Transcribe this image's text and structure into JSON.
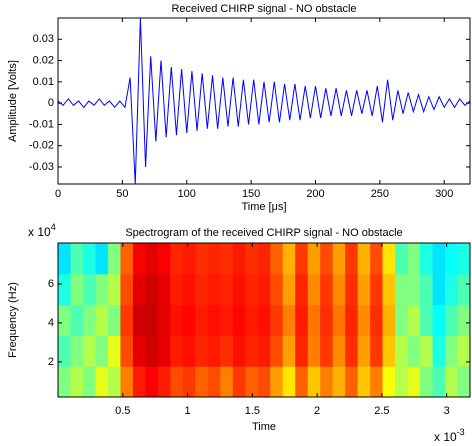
{
  "chart_data": [
    {
      "type": "line",
      "title": "Received CHIRP signal - NO obstacle",
      "xlabel": "Time [μs]",
      "ylabel": "Amplitude [Volts]",
      "color": "#0000ff",
      "x": [
        0,
        4,
        8,
        12,
        16,
        20,
        24,
        28,
        32,
        36,
        40,
        44,
        48,
        52,
        56,
        60,
        64,
        68,
        72,
        76,
        80,
        84,
        88,
        92,
        96,
        100,
        104,
        108,
        112,
        116,
        120,
        124,
        128,
        132,
        136,
        140,
        144,
        148,
        152,
        156,
        160,
        164,
        168,
        172,
        176,
        180,
        184,
        188,
        192,
        196,
        200,
        204,
        208,
        212,
        216,
        220,
        224,
        228,
        232,
        236,
        240,
        244,
        248,
        252,
        256,
        260,
        264,
        268,
        272,
        276,
        280,
        284,
        288,
        292,
        296,
        300,
        304,
        308,
        312,
        316,
        320
      ],
      "values": [
        0.001,
        -0.001,
        0.002,
        -0.001,
        0.001,
        -0.002,
        0.001,
        -0.001,
        0.002,
        -0.001,
        0.001,
        -0.002,
        0.001,
        -0.002,
        0.012,
        -0.038,
        0.04,
        -0.03,
        0.022,
        -0.018,
        0.02,
        -0.016,
        0.017,
        -0.015,
        0.016,
        -0.014,
        0.015,
        -0.013,
        0.014,
        -0.012,
        0.013,
        -0.012,
        0.012,
        -0.011,
        0.012,
        -0.011,
        0.011,
        -0.01,
        0.011,
        -0.01,
        0.01,
        -0.009,
        0.01,
        -0.009,
        0.009,
        -0.008,
        0.009,
        -0.008,
        0.008,
        -0.007,
        0.008,
        -0.007,
        0.007,
        -0.006,
        0.007,
        -0.006,
        0.006,
        -0.006,
        0.006,
        -0.005,
        0.006,
        -0.006,
        0.008,
        -0.009,
        0.011,
        -0.008,
        0.006,
        -0.005,
        0.005,
        -0.004,
        0.004,
        -0.004,
        0.003,
        -0.003,
        0.003,
        -0.002,
        0.002,
        -0.002,
        0.002,
        -0.001,
        0.001
      ],
      "xlim": [
        0,
        320
      ],
      "xticks": [
        0,
        50,
        100,
        150,
        200,
        250,
        300
      ],
      "ylim": [
        -0.038,
        0.04
      ],
      "yticks": [
        -0.03,
        -0.02,
        -0.01,
        0,
        0.01,
        0.02,
        0.03
      ]
    },
    {
      "type": "heatmap",
      "title": "Spectrogram of the received CHIRP signal - NO obstacle",
      "xlabel": "Time",
      "ylabel": "Frequency (Hz)",
      "x_multiplier": "x 10",
      "x_exponent": "-3",
      "y_multiplier": "x 10",
      "y_exponent": "4",
      "colormap": "jet",
      "zlim": [
        0,
        1
      ],
      "xlim": [
        0,
        3.18
      ],
      "xticks": [
        0.5,
        1,
        1.5,
        2,
        2.5,
        3
      ],
      "ylim": [
        0.2,
        8.1
      ],
      "yticks": [
        2,
        4,
        6
      ],
      "values": [
        [
          0.5,
          0.55,
          0.5,
          0.6,
          0.55,
          0.75,
          0.85,
          0.88,
          0.85,
          0.8,
          0.82,
          0.78,
          0.8,
          0.75,
          0.82,
          0.78,
          0.8,
          0.72,
          0.65,
          0.78,
          0.68,
          0.75,
          0.7,
          0.78,
          0.68,
          0.75,
          0.62,
          0.55,
          0.6,
          0.5,
          0.45,
          0.55,
          0.5
        ],
        [
          0.45,
          0.5,
          0.55,
          0.5,
          0.6,
          0.8,
          0.9,
          0.92,
          0.9,
          0.85,
          0.86,
          0.84,
          0.85,
          0.83,
          0.86,
          0.84,
          0.85,
          0.8,
          0.72,
          0.84,
          0.75,
          0.82,
          0.74,
          0.83,
          0.72,
          0.82,
          0.68,
          0.55,
          0.5,
          0.55,
          0.4,
          0.5,
          0.55
        ],
        [
          0.5,
          0.45,
          0.5,
          0.55,
          0.5,
          0.82,
          0.92,
          0.93,
          0.9,
          0.86,
          0.87,
          0.85,
          0.86,
          0.85,
          0.87,
          0.85,
          0.86,
          0.82,
          0.75,
          0.85,
          0.76,
          0.83,
          0.76,
          0.84,
          0.74,
          0.83,
          0.7,
          0.5,
          0.55,
          0.45,
          0.38,
          0.45,
          0.5
        ],
        [
          0.4,
          0.5,
          0.45,
          0.5,
          0.55,
          0.8,
          0.9,
          0.92,
          0.9,
          0.85,
          0.86,
          0.84,
          0.85,
          0.84,
          0.86,
          0.84,
          0.85,
          0.8,
          0.72,
          0.84,
          0.74,
          0.82,
          0.74,
          0.83,
          0.72,
          0.82,
          0.68,
          0.5,
          0.5,
          0.45,
          0.35,
          0.4,
          0.45
        ],
        [
          0.35,
          0.45,
          0.4,
          0.35,
          0.5,
          0.78,
          0.88,
          0.9,
          0.88,
          0.84,
          0.85,
          0.83,
          0.84,
          0.83,
          0.85,
          0.83,
          0.84,
          0.78,
          0.7,
          0.82,
          0.72,
          0.8,
          0.72,
          0.82,
          0.7,
          0.8,
          0.65,
          0.45,
          0.5,
          0.4,
          0.35,
          0.38,
          0.4
        ]
      ]
    }
  ]
}
